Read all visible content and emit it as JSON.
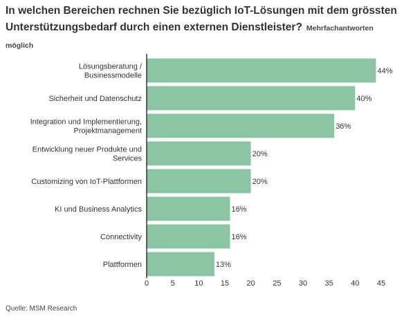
{
  "title": "In welchen Bereichen rechnen Sie bezüglich IoT-Lösungen mit dem grössten Unterstützungsbedarf durch einen externen Dienstleister?",
  "subtitle": "Mehrfachantworten möglich",
  "source": "Quelle: MSM Research",
  "colors": {
    "bar": "#8dc4a4",
    "axis": "#333333",
    "text": "#333333"
  },
  "chart_data": {
    "type": "bar",
    "orientation": "horizontal",
    "categories": [
      [
        "Lösungsberatung /",
        "Businessmodelle"
      ],
      [
        "Sicherheit und Datenschutz"
      ],
      [
        "Integration und Implementierung,",
        "Projektmanagement"
      ],
      [
        "Entwicklung neuer Produkte und",
        "Services"
      ],
      [
        "Customizing von IoT-Plattformen"
      ],
      [
        "KI und Business Analytics"
      ],
      [
        "Connectivity"
      ],
      [
        "Plattformen"
      ]
    ],
    "values": [
      44,
      40,
      36,
      20,
      20,
      16,
      16,
      13
    ],
    "data_labels": [
      "44%",
      "40%",
      "36%",
      "20%",
      "20%",
      "16%",
      "16%",
      "13%"
    ],
    "xlim": [
      0,
      45
    ],
    "xticks": [
      0,
      5,
      10,
      15,
      20,
      25,
      30,
      35,
      40,
      45
    ],
    "grid": false,
    "legend": "none"
  }
}
